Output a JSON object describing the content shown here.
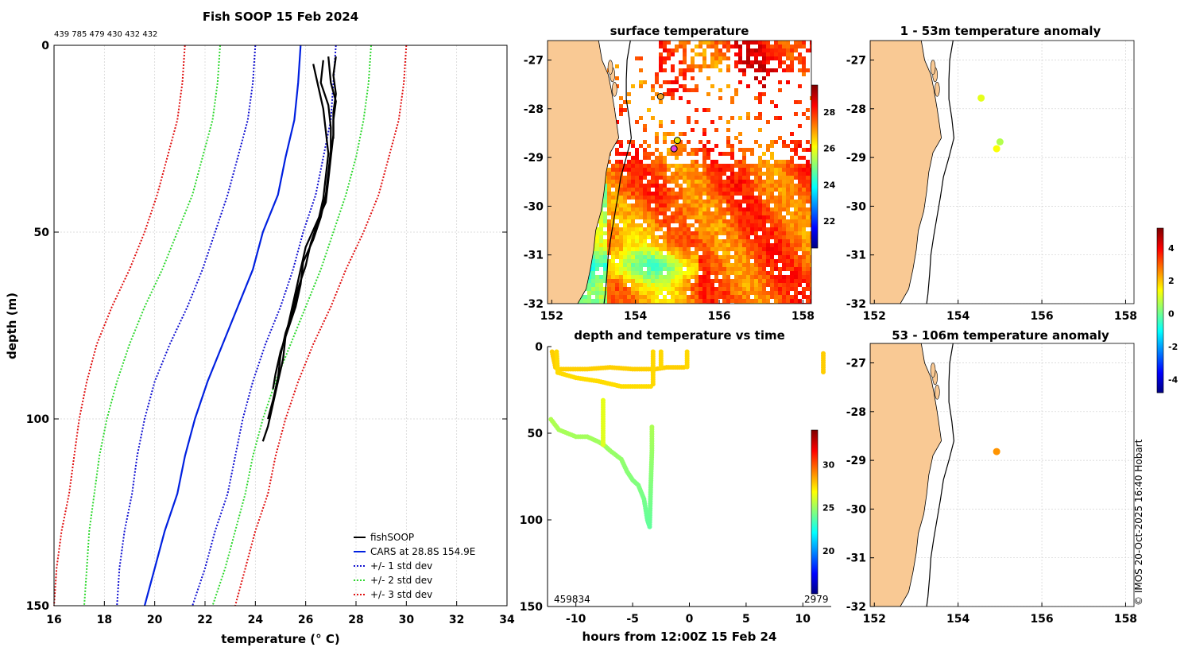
{
  "colors": {
    "land": "#f9c994",
    "grid": "#d2d2d2",
    "fish": "#000000",
    "cars": "#0020e0",
    "sd1": "#1010d0",
    "sd2": "#30d830",
    "sd3": "#e01010"
  },
  "chart_data": [
    {
      "id": "profile",
      "type": "line",
      "title": "Fish SOOP 15 Feb 2024",
      "subtitle": "439 785 479 430 432 432",
      "xlabel": "temperature (° C)",
      "ylabel": "depth (m)",
      "xlim": [
        16,
        34
      ],
      "ylim": [
        150,
        0
      ],
      "xticks": [
        "16",
        "18",
        "20",
        "22",
        "24",
        "26",
        "28",
        "30",
        "32",
        "34"
      ],
      "yticks": [
        "0",
        "50",
        "100",
        "150"
      ],
      "legend_position": "bottom-right",
      "series": [
        {
          "name": "CARS at 28.8S 154.9E",
          "style": "solid",
          "color": "cars",
          "depth": [
            0,
            10,
            20,
            30,
            40,
            50,
            60,
            70,
            80,
            90,
            100,
            110,
            120,
            130,
            140,
            150
          ],
          "temp": [
            25.8,
            25.7,
            25.55,
            25.2,
            24.9,
            24.3,
            23.9,
            23.3,
            22.7,
            22.1,
            21.6,
            21.2,
            20.9,
            20.4,
            20.0,
            19.6
          ]
        },
        {
          "name": "+/- 1 std dev",
          "style": "dotted",
          "color": "sd1",
          "depth": [
            0,
            10,
            20,
            30,
            40,
            50,
            60,
            70,
            80,
            90,
            100,
            110,
            120,
            130,
            140,
            150
          ],
          "temp": [
            27.2,
            27.1,
            27.0,
            26.7,
            26.4,
            25.9,
            25.5,
            25.0,
            24.4,
            23.9,
            23.5,
            23.2,
            22.9,
            22.4,
            22.0,
            21.5
          ]
        },
        {
          "name": "+/- 1 std dev",
          "style": "dotted",
          "color": "sd1",
          "depth": [
            0,
            10,
            20,
            30,
            40,
            50,
            60,
            70,
            80,
            90,
            100,
            110,
            120,
            130,
            140,
            150
          ],
          "temp": [
            24.0,
            23.9,
            23.7,
            23.3,
            22.9,
            22.4,
            21.9,
            21.3,
            20.6,
            20.0,
            19.6,
            19.3,
            19.1,
            18.8,
            18.6,
            18.5
          ]
        },
        {
          "name": "+/- 2 std dev",
          "style": "dotted",
          "color": "sd2",
          "depth": [
            0,
            10,
            20,
            30,
            40,
            50,
            60,
            70,
            80,
            90,
            100,
            110,
            120,
            130,
            140,
            150
          ],
          "temp": [
            28.6,
            28.5,
            28.3,
            28.0,
            27.6,
            27.1,
            26.6,
            26.0,
            25.4,
            24.8,
            24.3,
            23.9,
            23.6,
            23.2,
            22.8,
            22.3
          ]
        },
        {
          "name": "+/- 2 std dev",
          "style": "dotted",
          "color": "sd2",
          "depth": [
            0,
            10,
            20,
            30,
            40,
            50,
            60,
            70,
            80,
            90,
            100,
            110,
            120,
            130,
            140,
            150
          ],
          "temp": [
            22.6,
            22.5,
            22.3,
            21.9,
            21.5,
            20.9,
            20.3,
            19.6,
            19.0,
            18.5,
            18.1,
            17.8,
            17.6,
            17.4,
            17.3,
            17.2
          ]
        },
        {
          "name": "+/- 3 std dev",
          "style": "dotted",
          "color": "sd3",
          "depth": [
            0,
            10,
            20,
            30,
            40,
            50,
            60,
            70,
            80,
            90,
            100,
            110,
            120,
            130,
            140,
            150
          ],
          "temp": [
            30.0,
            29.9,
            29.7,
            29.3,
            28.9,
            28.3,
            27.6,
            27.0,
            26.3,
            25.7,
            25.2,
            24.8,
            24.5,
            24.0,
            23.6,
            23.2
          ]
        },
        {
          "name": "+/- 3 std dev",
          "style": "dotted",
          "color": "sd3",
          "depth": [
            0,
            10,
            20,
            30,
            40,
            50,
            60,
            70,
            80,
            90,
            100,
            110,
            120,
            130,
            140,
            150
          ],
          "temp": [
            21.2,
            21.1,
            20.9,
            20.5,
            20.1,
            19.6,
            19.0,
            18.3,
            17.7,
            17.3,
            17.0,
            16.8,
            16.6,
            16.3,
            16.1,
            16.0
          ]
        }
      ],
      "fish_profiles": [
        {
          "depth": [
            3,
            10,
            15,
            20,
            25
          ],
          "temp": [
            26.9,
            27.0,
            27.2,
            27.1,
            27.1
          ]
        },
        {
          "depth": [
            3,
            8,
            13,
            18,
            24,
            30,
            36,
            42,
            48,
            54,
            60,
            66,
            72,
            78,
            84,
            90,
            96,
            102,
            106
          ],
          "temp": [
            27.2,
            27.1,
            27.2,
            27.1,
            27.1,
            27.0,
            26.9,
            26.8,
            26.4,
            26.0,
            25.8,
            25.6,
            25.4,
            25.2,
            25.1,
            24.9,
            24.7,
            24.5,
            24.3
          ]
        },
        {
          "depth": [
            4,
            10,
            16,
            22,
            28,
            34,
            40,
            46,
            52,
            58,
            64,
            70,
            76,
            82,
            88,
            92
          ],
          "temp": [
            26.7,
            26.6,
            26.9,
            27.0,
            27.0,
            26.9,
            26.8,
            26.6,
            26.3,
            25.9,
            25.8,
            25.6,
            25.3,
            25.0,
            24.8,
            24.7
          ]
        },
        {
          "depth": [
            5,
            11,
            17,
            23,
            29,
            35,
            41,
            47,
            53,
            59,
            65,
            71,
            77,
            83,
            89,
            95,
            100
          ],
          "temp": [
            26.3,
            26.5,
            26.7,
            26.8,
            26.9,
            26.8,
            26.7,
            26.5,
            26.2,
            26.0,
            25.7,
            25.5,
            25.2,
            25.0,
            24.9,
            24.7,
            24.5
          ]
        }
      ],
      "legend": [
        "fishSOOP",
        "CARS at 28.8S 154.9E",
        "+/- 1 std dev",
        "+/- 2 std dev",
        "+/- 3 std dev"
      ]
    },
    {
      "id": "sst",
      "type": "heatmap",
      "title": "surface temperature",
      "xlim": [
        151.9,
        158.2
      ],
      "ylim": [
        -32,
        -26.6
      ],
      "xticks": [
        "152",
        "154",
        "156",
        "158"
      ],
      "yticks": [
        "-27",
        "-28",
        "-29",
        "-30",
        "-31",
        "-32"
      ],
      "colorbar_ticks": [
        "22",
        "24",
        "26",
        "28"
      ],
      "clim": [
        20.5,
        29.5
      ],
      "markers": [
        {
          "lon": 154.6,
          "lat": -27.75,
          "color": "#f4a020"
        },
        {
          "lon": 155.0,
          "lat": -28.65,
          "color": "#e8e000"
        },
        {
          "lon": 154.92,
          "lat": -28.82,
          "color": "#e040e0"
        }
      ]
    },
    {
      "id": "anom1",
      "type": "scatter",
      "title": "1 - 53m temperature anomaly",
      "xlim": [
        151.9,
        158.2
      ],
      "ylim": [
        -32,
        -26.6
      ],
      "xticks": [
        "152",
        "154",
        "156",
        "158"
      ],
      "yticks": [
        "-27",
        "-28",
        "-29",
        "-30",
        "-31",
        "-32"
      ],
      "points": [
        {
          "lon": 154.55,
          "lat": -27.78,
          "anomaly": 1.2
        },
        {
          "lon": 155.0,
          "lat": -28.68,
          "anomaly": 0.7
        },
        {
          "lon": 154.92,
          "lat": -28.82,
          "anomaly": 1.4
        }
      ]
    },
    {
      "id": "anom2",
      "type": "scatter",
      "title": "53 - 106m temperature anomaly",
      "xlim": [
        151.9,
        158.2
      ],
      "ylim": [
        -32,
        -26.6
      ],
      "xticks": [
        "152",
        "154",
        "156",
        "158"
      ],
      "yticks": [
        "-27",
        "-28",
        "-29",
        "-30",
        "-31",
        "-32"
      ],
      "points": [
        {
          "lon": 154.92,
          "lat": -28.82,
          "anomaly": 2.5
        }
      ]
    },
    {
      "id": "anom_cbar",
      "type": "colorbar",
      "ticks": [
        "-4",
        "-2",
        "0",
        "2",
        "4"
      ],
      "clim": [
        -4.8,
        5.2
      ]
    },
    {
      "id": "timeseries",
      "type": "scatter",
      "title": "depth and temperature vs time",
      "xlabel": "hours from 12:00Z 15 Feb 24",
      "ylabel": "",
      "xlim": [
        -12.5,
        12.5
      ],
      "ylim": [
        150,
        0
      ],
      "xticks": [
        "-10",
        "-5",
        "0",
        "5",
        "10"
      ],
      "yticks": [
        "0",
        "50",
        "100",
        "150"
      ],
      "colorbar_ticks": [
        "20",
        "25",
        "30"
      ],
      "clim": [
        15,
        34
      ],
      "bottom_left_label": "459834",
      "bottom_right_label": "2979"
    }
  ],
  "credit": "© IMOS 20-Oct-2025 16:40 Hobart"
}
